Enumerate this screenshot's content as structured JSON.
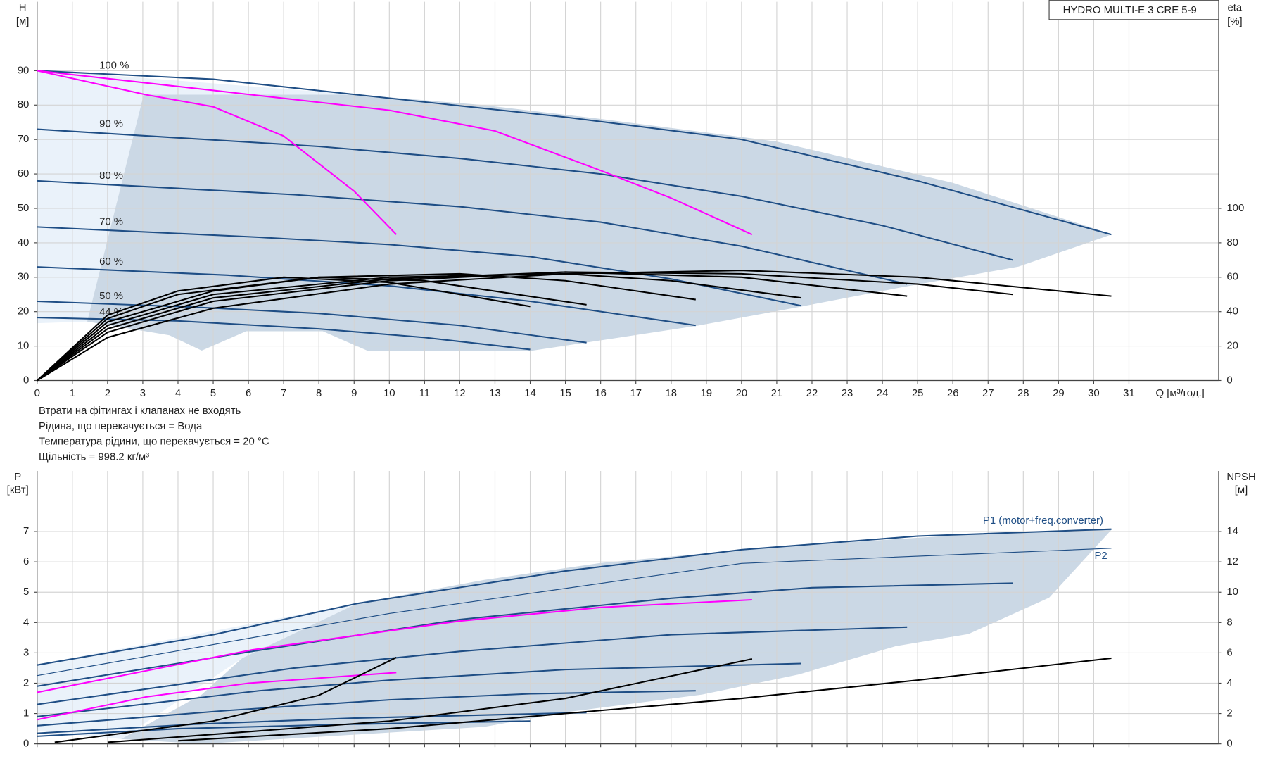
{
  "chart_data": [
    {
      "type": "line",
      "title": "HYDRO MULTI-E 3 CRE 5-9",
      "xlabel": "Q [м³/год.]",
      "ylabel": "H",
      "yunit": "[м]",
      "y2label": "eta",
      "y2unit": "[%]",
      "xlim": [
        0,
        33.5
      ],
      "ylim": [
        0,
        110
      ],
      "y2lim": [
        0,
        220
      ],
      "grid": true,
      "xticks": [
        0,
        1,
        2,
        3,
        4,
        5,
        6,
        7,
        8,
        9,
        10,
        11,
        12,
        13,
        14,
        15,
        16,
        17,
        18,
        19,
        20,
        21,
        22,
        23,
        24,
        25,
        26,
        27,
        28,
        29,
        30,
        31
      ],
      "yticks": [
        0,
        10,
        20,
        30,
        40,
        50,
        60,
        70,
        80,
        90
      ],
      "y2ticks": [
        0,
        20,
        40,
        60,
        80,
        100
      ],
      "series": [
        {
          "name": "100 %",
          "color": "#1f4e85",
          "x": [
            0,
            5,
            10,
            15,
            20,
            25,
            30.5
          ],
          "values": [
            90,
            87.5,
            82,
            76.5,
            70,
            58,
            42.4
          ]
        },
        {
          "name": "90 %",
          "color": "#1f4e85",
          "x": [
            0,
            8,
            12,
            16,
            20,
            24,
            27.7
          ],
          "values": [
            73,
            68,
            64.5,
            60,
            53.5,
            45,
            35
          ]
        },
        {
          "name": "80 %",
          "color": "#1f4e85",
          "x": [
            0,
            7.3,
            12,
            16,
            20,
            24.7
          ],
          "values": [
            58,
            54,
            50.5,
            46,
            39,
            28
          ]
        },
        {
          "name": "70 %",
          "color": "#1f4e85",
          "x": [
            0,
            6.3,
            10,
            14,
            18,
            21.7
          ],
          "values": [
            44.6,
            41.6,
            39.5,
            36,
            29.5,
            21.7
          ]
        },
        {
          "name": "60 %",
          "color": "#1f4e85",
          "x": [
            0,
            5.4,
            10,
            14,
            18.7
          ],
          "values": [
            33,
            30.6,
            27.5,
            23,
            16
          ]
        },
        {
          "name": "50 %",
          "color": "#1f4e85",
          "x": [
            0,
            4.5,
            8,
            12,
            15.6
          ],
          "values": [
            23,
            21.3,
            19.5,
            16,
            11
          ]
        },
        {
          "name": "44 %",
          "color": "#1f4e85",
          "x": [
            0,
            4,
            8,
            11,
            14
          ],
          "values": [
            18.3,
            17.3,
            15,
            12.5,
            9
          ]
        },
        {
          "color": "#000000",
          "axis": "y2",
          "x": [
            0,
            2,
            5,
            10,
            15,
            20,
            25,
            30.5
          ],
          "values": [
            0,
            25,
            42,
            56,
            62,
            64,
            60,
            49
          ]
        },
        {
          "color": "#000000",
          "axis": "y2",
          "x": [
            0,
            2,
            5,
            10,
            15,
            20,
            25,
            27.7
          ],
          "values": [
            0,
            28,
            46,
            58,
            63,
            62,
            56,
            50
          ]
        },
        {
          "color": "#000000",
          "axis": "y2",
          "x": [
            0,
            2,
            5,
            10,
            15,
            20,
            24.7
          ],
          "values": [
            0,
            30,
            48,
            59,
            63,
            60,
            49
          ]
        },
        {
          "color": "#000000",
          "axis": "y2",
          "x": [
            0,
            2,
            5,
            10,
            15,
            18,
            21.7
          ],
          "values": [
            0,
            32,
            50,
            60,
            62,
            58,
            48
          ]
        },
        {
          "color": "#000000",
          "axis": "y2",
          "x": [
            0,
            2,
            5,
            8,
            12,
            15,
            18.7
          ],
          "values": [
            0,
            34,
            52,
            60,
            62,
            58,
            47
          ]
        },
        {
          "color": "#000000",
          "axis": "y2",
          "x": [
            0,
            2,
            4,
            8,
            11,
            15.6
          ],
          "values": [
            0,
            36,
            50,
            60,
            58,
            44
          ]
        },
        {
          "color": "#000000",
          "axis": "y2",
          "x": [
            0,
            2,
            4,
            7,
            10,
            14
          ],
          "values": [
            0,
            38,
            52,
            60,
            57,
            43
          ]
        },
        {
          "color": "#ff00ff",
          "x": [
            0,
            3.1,
            5,
            7,
            9,
            10.2
          ],
          "values": [
            90,
            83,
            79.5,
            71,
            55,
            42.4
          ]
        },
        {
          "color": "#ff00ff",
          "x": [
            0,
            6.1,
            10,
            13,
            16,
            18,
            20.3
          ],
          "values": [
            90,
            83,
            78.5,
            72.5,
            61,
            53,
            42.4
          ]
        }
      ]
    },
    {
      "type": "line",
      "ylabel": "P",
      "yunit": "[кВт]",
      "y2label": "NPSH",
      "y2unit": "[м]",
      "xlim": [
        0,
        33.5
      ],
      "ylim": [
        0,
        9
      ],
      "y2lim": [
        0,
        18
      ],
      "grid": true,
      "xticks": [
        0,
        1,
        2,
        3,
        4,
        5,
        6,
        7,
        8,
        9,
        10,
        11,
        12,
        13,
        14,
        15,
        16,
        17,
        18,
        19,
        20,
        21,
        22,
        23,
        24,
        25,
        26,
        27,
        28,
        29,
        30,
        31
      ],
      "yticks": [
        0,
        1,
        2,
        3,
        4,
        5,
        6,
        7
      ],
      "y2ticks": [
        0,
        2,
        4,
        6,
        8,
        10,
        12,
        14
      ],
      "series": [
        {
          "name": "P1 (motor+freq.converter)",
          "color": "#1f4e85",
          "x": [
            0,
            5,
            9.1,
            15,
            20,
            25,
            30.5
          ],
          "values": [
            2.6,
            3.6,
            4.63,
            5.7,
            6.4,
            6.85,
            7.08
          ]
        },
        {
          "name": "P2",
          "color": "#1f4e85",
          "x": [
            0,
            10,
            20,
            30.5
          ],
          "values": [
            2.25,
            4.3,
            5.95,
            6.45
          ]
        },
        {
          "color": "#1f4e85",
          "x": [
            0,
            6.1,
            12,
            18,
            22,
            27.7
          ],
          "values": [
            1.9,
            3.05,
            4.1,
            4.8,
            5.15,
            5.3
          ]
        },
        {
          "color": "#1f4e85",
          "x": [
            0,
            7.3,
            12,
            18,
            24.7
          ],
          "values": [
            1.3,
            2.5,
            3.05,
            3.6,
            3.85
          ]
        },
        {
          "color": "#1f4e85",
          "x": [
            0,
            6.3,
            10,
            15,
            21.7
          ],
          "values": [
            0.9,
            1.75,
            2.1,
            2.45,
            2.65
          ]
        },
        {
          "color": "#1f4e85",
          "x": [
            0,
            5.4,
            10,
            14,
            18.7
          ],
          "values": [
            0.6,
            1.1,
            1.45,
            1.65,
            1.75
          ]
        },
        {
          "color": "#1f4e85",
          "x": [
            0,
            4.5,
            9,
            15.6
          ],
          "values": [
            0.35,
            0.65,
            0.85,
            1.03
          ]
        },
        {
          "color": "#1f4e85",
          "x": [
            0,
            4,
            9,
            14
          ],
          "values": [
            0.25,
            0.5,
            0.65,
            0.75
          ]
        },
        {
          "color": "#ff00ff",
          "x": [
            0,
            6.1,
            12,
            16,
            20.3
          ],
          "values": [
            1.7,
            3.1,
            4.05,
            4.5,
            4.75
          ]
        },
        {
          "color": "#ff00ff",
          "x": [
            0,
            3.1,
            6,
            10.2
          ],
          "values": [
            0.8,
            1.55,
            2,
            2.35
          ]
        },
        {
          "color": "#000000",
          "axis": "y2",
          "x": [
            4,
            10,
            15,
            20,
            25,
            30.5
          ],
          "values": [
            0.2,
            1,
            2,
            3,
            4.2,
            5.65
          ]
        },
        {
          "color": "#000000",
          "axis": "y2",
          "x": [
            0.5,
            5,
            8,
            10.2
          ],
          "values": [
            0.1,
            1.5,
            3.2,
            5.7
          ]
        },
        {
          "color": "#000000",
          "axis": "y2",
          "x": [
            2,
            10,
            15,
            20.3
          ],
          "values": [
            0.1,
            1.5,
            3,
            5.6
          ]
        }
      ]
    }
  ],
  "notes": [
    "Втрати на фітингах і клапанах не входять",
    "Рідина, що перекачується = Вода",
    "Температура рідини, що перекачується = 20 °C",
    "Щільність = 998.2 кг/м³"
  ]
}
